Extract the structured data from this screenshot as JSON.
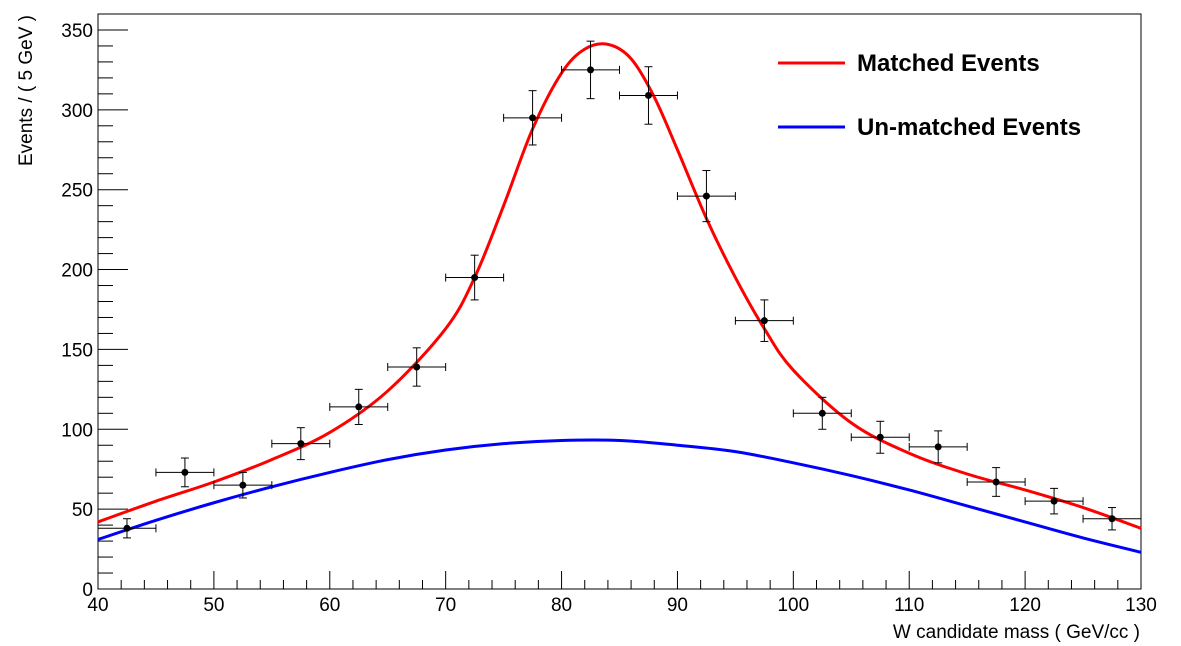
{
  "chart_data": {
    "type": "scatter",
    "title": "",
    "xlabel": "W candidate mass ( GeV/cc )",
    "ylabel": "Events / ( 5 GeV )",
    "xlim": [
      40,
      130
    ],
    "ylim": [
      0,
      360
    ],
    "grid": false,
    "legend": "top-right",
    "x_ticks": [
      40,
      50,
      60,
      70,
      80,
      90,
      100,
      110,
      120,
      130
    ],
    "y_ticks": [
      0,
      50,
      100,
      150,
      200,
      250,
      300,
      350
    ],
    "data_points": {
      "x": [
        42.5,
        47.5,
        52.5,
        57.5,
        62.5,
        67.5,
        72.5,
        77.5,
        82.5,
        87.5,
        92.5,
        97.5,
        102.5,
        107.5,
        112.5,
        117.5,
        122.5,
        127.5
      ],
      "y": [
        38,
        73,
        65,
        91,
        114,
        139,
        195,
        295,
        325,
        309,
        246,
        168,
        110,
        95,
        89,
        67,
        55,
        44
      ],
      "x_err": 2.5,
      "y_err": [
        6,
        9,
        8,
        10,
        11,
        12,
        14,
        17,
        18,
        18,
        16,
        13,
        10,
        10,
        10,
        9,
        8,
        7
      ],
      "color": "#000000"
    },
    "series": [
      {
        "name": "Matched Events",
        "color": "#ff0000",
        "x": [
          40,
          45,
          50,
          55,
          60,
          65,
          70,
          72.5,
          75,
          77.5,
          80,
          82,
          84,
          86,
          88,
          90,
          92.5,
          95,
          97.5,
          100,
          105,
          110,
          115,
          120,
          125,
          130
        ],
        "y": [
          42,
          55,
          67,
          81,
          98,
          124,
          163,
          195,
          240,
          288,
          323,
          338,
          341,
          332,
          308,
          275,
          232,
          195,
          163,
          137,
          104,
          85,
          72,
          62,
          51,
          38
        ]
      },
      {
        "name": "Un-matched Events",
        "color": "#0000ff",
        "x": [
          40,
          45,
          50,
          55,
          60,
          65,
          70,
          75,
          80,
          85,
          90,
          95,
          100,
          105,
          110,
          115,
          120,
          125,
          130
        ],
        "y": [
          31,
          43,
          54,
          64,
          73,
          81,
          87,
          91,
          93,
          93,
          90,
          86,
          79,
          71,
          62,
          52,
          42,
          32,
          23
        ]
      }
    ]
  }
}
